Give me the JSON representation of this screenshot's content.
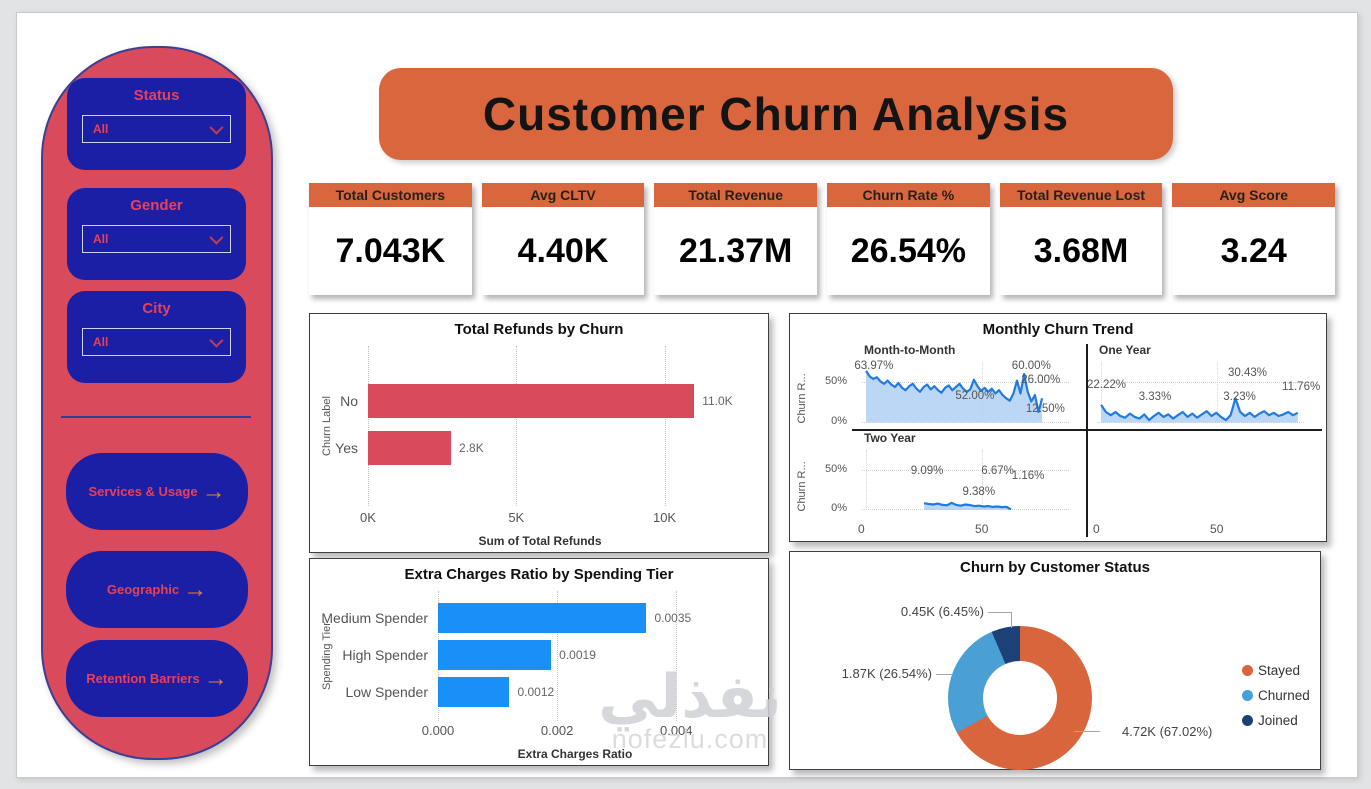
{
  "header": {
    "title": "Customer Churn Analysis"
  },
  "colors": {
    "sidebar_red": "#d84a5c",
    "card_blue": "#1b1fa6",
    "accent_orange": "#d9663c",
    "nav_arrow_orange": "#e8832e",
    "bar_red": "#d84a5c",
    "bar_blue": "#1890f8",
    "line_blue": "#1f7be0"
  },
  "sidebar": {
    "filters": [
      {
        "label": "Status",
        "value": "All"
      },
      {
        "label": "Gender",
        "value": "All"
      },
      {
        "label": "City",
        "value": "All"
      }
    ],
    "nav": [
      {
        "label": "Services & Usage"
      },
      {
        "label": "Geographic"
      },
      {
        "label": "Retention Barriers"
      }
    ]
  },
  "kpis": [
    {
      "label": "Total Customers",
      "value": "7.043K"
    },
    {
      "label": "Avg CLTV",
      "value": "4.40K"
    },
    {
      "label": "Total Revenue",
      "value": "21.37M"
    },
    {
      "label": "Churn Rate %",
      "value": "26.54%"
    },
    {
      "label": "Total Revenue Lost",
      "value": "3.68M"
    },
    {
      "label": "Avg Score",
      "value": "3.24"
    }
  ],
  "chart_data": [
    {
      "type": "bar",
      "orientation": "horizontal",
      "title": "Total Refunds by Churn",
      "categories": [
        "No",
        "Yes"
      ],
      "values": [
        11000,
        2800
      ],
      "value_labels": [
        "11.0K",
        "2.8K"
      ],
      "xlabel": "Sum of Total Refunds",
      "ylabel": "Churn Label",
      "ticks": [
        {
          "label": "0K",
          "value": 0
        },
        {
          "label": "5K",
          "value": 5000
        },
        {
          "label": "10K",
          "value": 10000
        }
      ],
      "xmax": 11600,
      "bar_color": "#d84a5c"
    },
    {
      "type": "line",
      "title": "Monthly Churn Trend",
      "ylabel": "Churn R...",
      "y_ticks": [
        "50%",
        "0%"
      ],
      "x_ticks": [
        "0",
        "50"
      ],
      "ymax": 75,
      "line_color": "#1f7be0",
      "fill_color": "#abccf3",
      "panels": [
        {
          "name": "Month-to-Month",
          "grid": [
            0,
            0
          ],
          "x_start": 0.02,
          "x_end": 0.87,
          "series": [
            64,
            57,
            54,
            56,
            51,
            48,
            52,
            47,
            44,
            49,
            43,
            40,
            45,
            48,
            42,
            38,
            44,
            47,
            41,
            45,
            40,
            37,
            43,
            46,
            40,
            44,
            48,
            42,
            38,
            41,
            53,
            45,
            39,
            43,
            38,
            42,
            36,
            40,
            34,
            30,
            27,
            36,
            52,
            36,
            60,
            38,
            26,
            34,
            13,
            30
          ],
          "annotations": [
            {
              "text": "63.97%",
              "x": 1,
              "y": 20
            },
            {
              "text": "52.00%",
              "x": 44,
              "y": 55
            },
            {
              "text": "60.00%",
              "x": 68,
              "y": 20
            },
            {
              "text": "26.00%",
              "x": 72,
              "y": 37
            },
            {
              "text": "12.50%",
              "x": 74,
              "y": 70
            }
          ]
        },
        {
          "name": "One Year",
          "grid": [
            0,
            1
          ],
          "x_start": 0.02,
          "x_end": 0.97,
          "series": [
            22,
            13,
            9,
            13,
            8,
            6,
            11,
            7,
            5,
            10,
            3,
            8,
            12,
            7,
            10,
            5,
            9,
            13,
            7,
            11,
            6,
            10,
            14,
            8,
            12,
            7,
            3,
            9,
            30,
            13,
            8,
            12,
            7,
            11,
            14,
            9,
            12,
            8,
            10,
            13,
            9,
            12
          ],
          "annotations": [
            {
              "text": "22.22%",
              "x": 0,
              "y": 42
            },
            {
              "text": "3.33%",
              "x": 22,
              "y": 56
            },
            {
              "text": "30.43%",
              "x": 60,
              "y": 28
            },
            {
              "text": "3.23%",
              "x": 58,
              "y": 56
            },
            {
              "text": "11.76%",
              "x": 83,
              "y": 45
            }
          ]
        },
        {
          "name": "Two Year",
          "grid": [
            1,
            0
          ],
          "x_start": 0.3,
          "x_end": 0.72,
          "series": [
            9,
            8,
            7.5,
            8.5,
            7,
            6.5,
            9.4,
            7,
            6,
            7.5,
            6.7,
            5.5,
            6,
            5,
            5.5,
            4.5,
            5,
            4.2,
            4.6,
            1.2
          ],
          "annotations": [
            {
              "text": "9.09%",
              "x": 25,
              "y": 40
            },
            {
              "text": "9.38%",
              "x": 47,
              "y": 64
            },
            {
              "text": "6.67%",
              "x": 55,
              "y": 40
            },
            {
              "text": "1.16%",
              "x": 68,
              "y": 46
            }
          ]
        }
      ]
    },
    {
      "type": "bar",
      "orientation": "horizontal",
      "title": "Extra Charges Ratio by Spending Tier",
      "categories": [
        "Medium Spender",
        "High Spender",
        "Low Spender"
      ],
      "values": [
        0.0035,
        0.0019,
        0.0012
      ],
      "value_labels": [
        "0.0035",
        "0.0019",
        "0.0012"
      ],
      "xlabel": "Extra Charges Ratio",
      "ylabel": "Spending Tier",
      "ticks": [
        {
          "label": "0.000",
          "value": 0
        },
        {
          "label": "0.002",
          "value": 0.002
        },
        {
          "label": "0.004",
          "value": 0.004
        }
      ],
      "xmax": 0.0046,
      "bar_color": "#1890f8"
    },
    {
      "type": "pie",
      "donut": true,
      "title": "Churn by Customer Status",
      "slices": [
        {
          "label": "Stayed",
          "percent": 67.02,
          "callout": "4.72K (67.02%)",
          "color": "#d9653c"
        },
        {
          "label": "Churned",
          "percent": 26.54,
          "callout": "1.87K (26.54%)",
          "color": "#4a9fd4"
        },
        {
          "label": "Joined",
          "percent": 6.45,
          "callout": "0.45K (6.45%)",
          "color": "#1d4077"
        }
      ],
      "legend_position": "right"
    }
  ],
  "watermark": {
    "arabic": "نفذلي",
    "domain": "nofezlu.com"
  }
}
